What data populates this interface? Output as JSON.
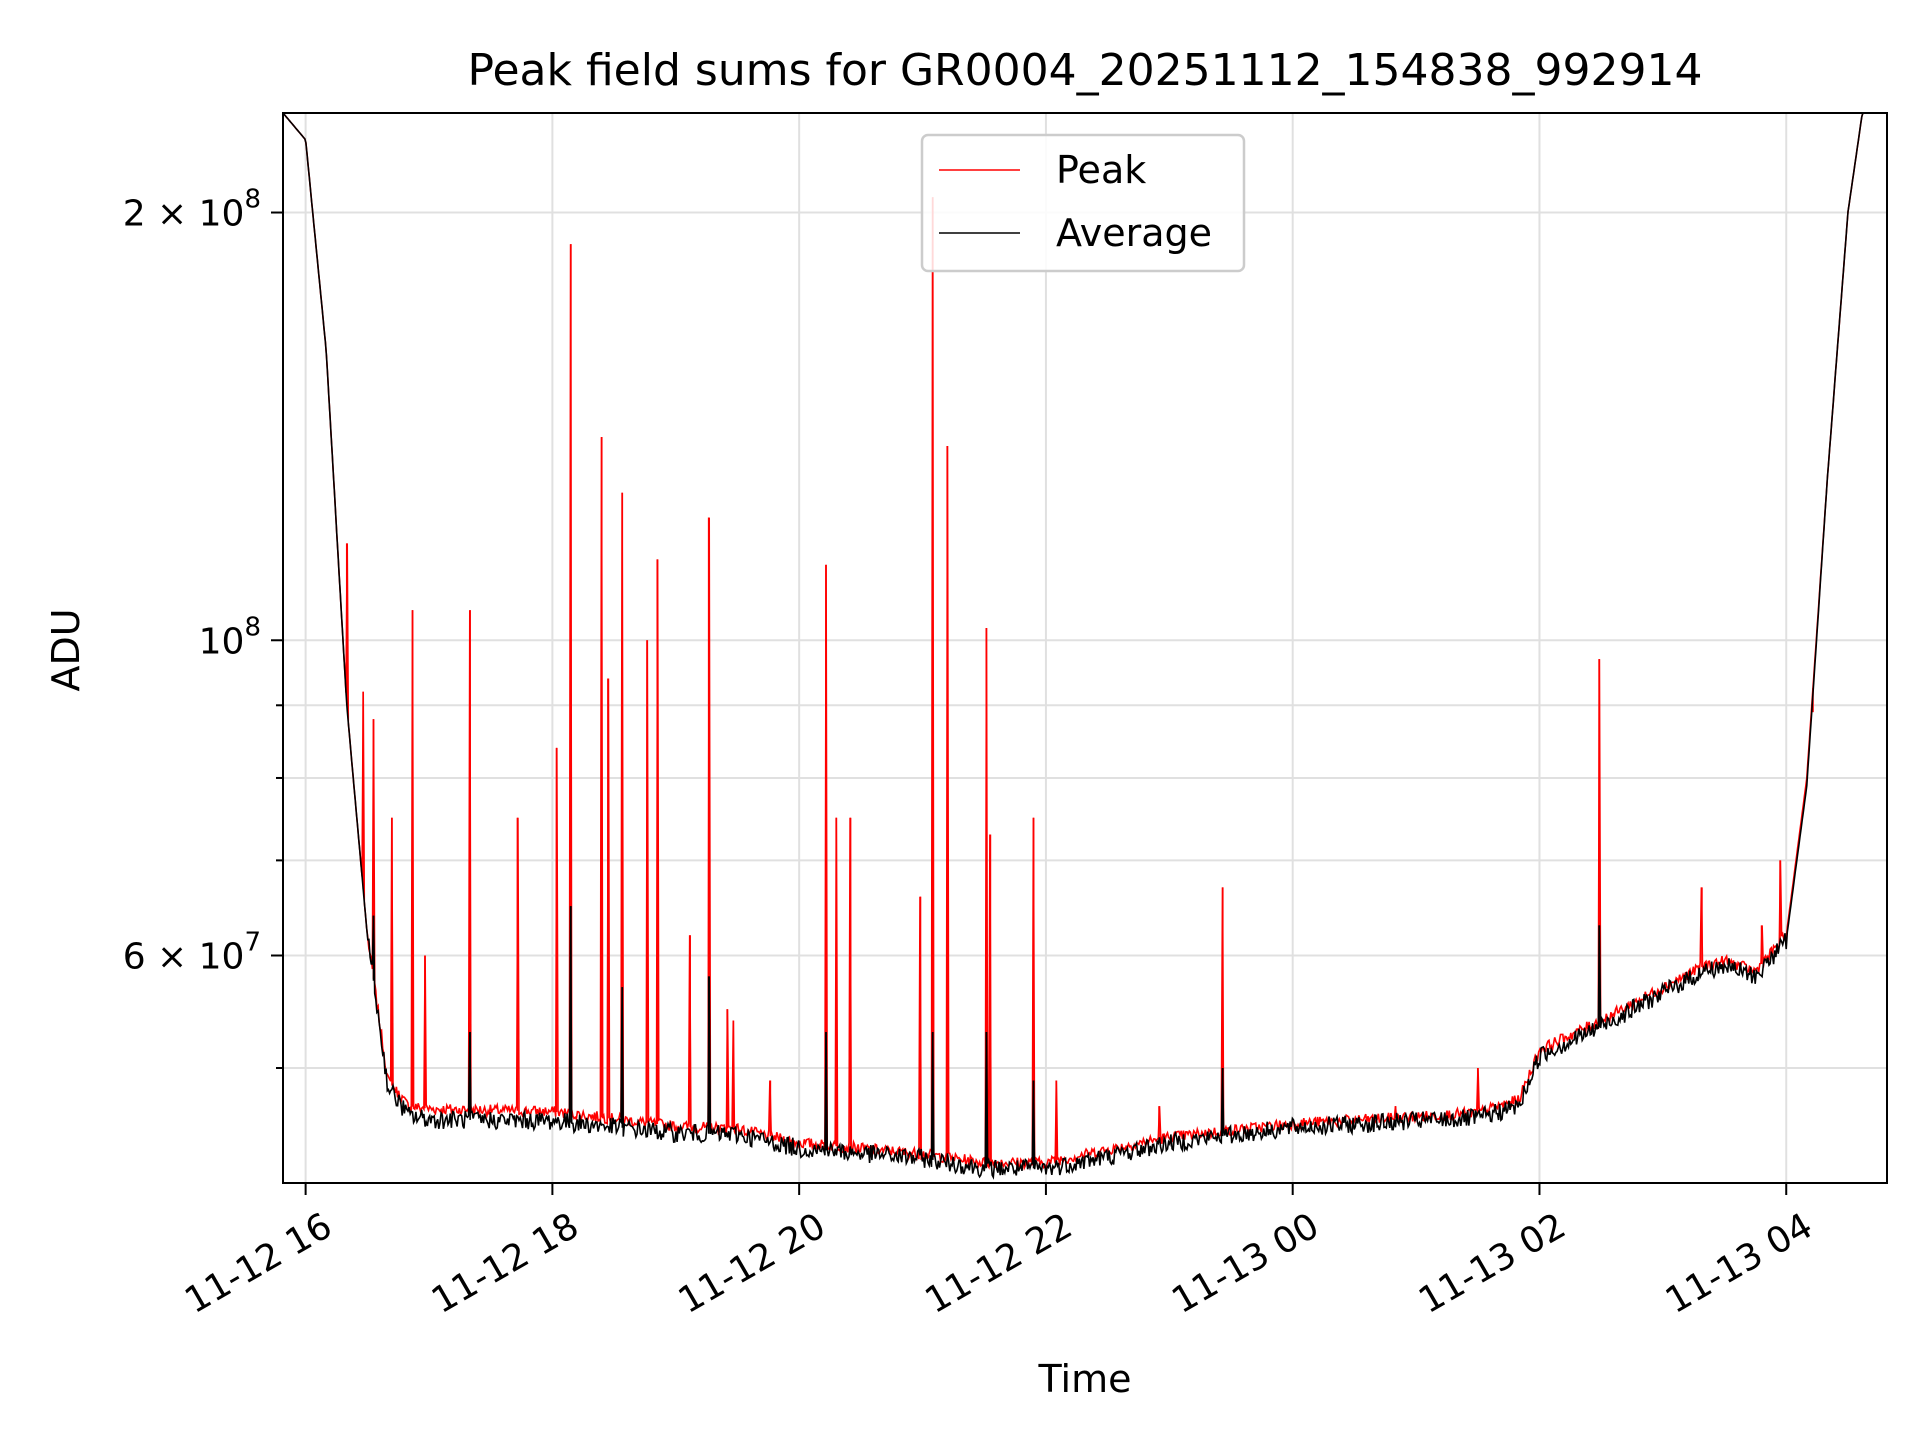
{
  "chart_data": {
    "type": "line",
    "title": "Peak field sums for GR0004_20251112_154838_992914",
    "xlabel": "Time",
    "ylabel": "ADU",
    "yscale": "log",
    "xlim": [
      "2025-11-12 15:49",
      "2025-11-13 04:49"
    ],
    "ylim": [
      41500000,
      235000000
    ],
    "grid": true,
    "legend_position": "top-center",
    "x_ticks": [
      {
        "label": "11-12 16",
        "value": "2025-11-12 16:00"
      },
      {
        "label": "11-12 18",
        "value": "2025-11-12 18:00"
      },
      {
        "label": "11-12 20",
        "value": "2025-11-12 20:00"
      },
      {
        "label": "11-12 22",
        "value": "2025-11-12 22:00"
      },
      {
        "label": "11-13 00",
        "value": "2025-11-13 00:00"
      },
      {
        "label": "11-13 02",
        "value": "2025-11-13 02:00"
      },
      {
        "label": "11-13 04",
        "value": "2025-11-13 04:00"
      }
    ],
    "y_ticks": [
      {
        "value": 200000000,
        "base": "2 × 10",
        "exp": "8"
      },
      {
        "value": 100000000,
        "base": "10",
        "exp": "8"
      },
      {
        "value": 60000000,
        "base": "6 × 10",
        "exp": "7"
      }
    ],
    "y_minor_ticks": [
      50000000,
      70000000,
      80000000,
      90000000
    ],
    "series": [
      {
        "name": "Peak",
        "color": "#ff0000",
        "baseline": [
          [
            "2025-11-12 15:49",
            235000000
          ],
          [
            "2025-11-12 16:00",
            225000000
          ],
          [
            "2025-11-12 16:10",
            160000000
          ],
          [
            "2025-11-12 16:20",
            90000000
          ],
          [
            "2025-11-12 16:30",
            62000000
          ],
          [
            "2025-11-12 16:40",
            49000000
          ],
          [
            "2025-11-12 16:50",
            47000000
          ],
          [
            "2025-11-12 17:00",
            46800000
          ],
          [
            "2025-11-12 18:00",
            46600000
          ],
          [
            "2025-11-12 19:00",
            45500000
          ],
          [
            "2025-11-12 19:30",
            45300000
          ],
          [
            "2025-11-12 20:00",
            44300000
          ],
          [
            "2025-11-12 21:00",
            43500000
          ],
          [
            "2025-11-12 21:30",
            42900000
          ],
          [
            "2025-11-12 22:00",
            42900000
          ],
          [
            "2025-11-12 22:30",
            43800000
          ],
          [
            "2025-11-12 23:00",
            44700000
          ],
          [
            "2025-11-13 00:00",
            45700000
          ],
          [
            "2025-11-13 01:00",
            46200000
          ],
          [
            "2025-11-13 01:30",
            46500000
          ],
          [
            "2025-11-13 01:50",
            47500000
          ],
          [
            "2025-11-13 02:00",
            51500000
          ],
          [
            "2025-11-13 02:30",
            54000000
          ],
          [
            "2025-11-13 03:00",
            57000000
          ],
          [
            "2025-11-13 03:20",
            59000000
          ],
          [
            "2025-11-13 03:30",
            59500000
          ],
          [
            "2025-11-13 03:45",
            58500000
          ],
          [
            "2025-11-13 04:00",
            62000000
          ],
          [
            "2025-11-13 04:10",
            80000000
          ],
          [
            "2025-11-13 04:20",
            130000000
          ],
          [
            "2025-11-13 04:30",
            200000000
          ],
          [
            "2025-11-13 04:37",
            235000000
          ],
          [
            "2025-11-13 04:49",
            235000000
          ]
        ],
        "spikes": [
          [
            "2025-11-12 16:20",
            117000000
          ],
          [
            "2025-11-12 16:28",
            92000000
          ],
          [
            "2025-11-12 16:33",
            88000000
          ],
          [
            "2025-11-12 16:42",
            75000000
          ],
          [
            "2025-11-12 16:52",
            105000000
          ],
          [
            "2025-11-12 16:58",
            60000000
          ],
          [
            "2025-11-12 17:20",
            105000000
          ],
          [
            "2025-11-12 17:43",
            75000000
          ],
          [
            "2025-11-12 18:02",
            84000000
          ],
          [
            "2025-11-12 18:09",
            190000000
          ],
          [
            "2025-11-12 18:24",
            139000000
          ],
          [
            "2025-11-12 18:27",
            94000000
          ],
          [
            "2025-11-12 18:34",
            127000000
          ],
          [
            "2025-11-12 18:46",
            100000000
          ],
          [
            "2025-11-12 18:51",
            114000000
          ],
          [
            "2025-11-12 19:07",
            62000000
          ],
          [
            "2025-11-12 19:16",
            122000000
          ],
          [
            "2025-11-12 19:25",
            55000000
          ],
          [
            "2025-11-12 19:28",
            54000000
          ],
          [
            "2025-11-12 19:46",
            49000000
          ],
          [
            "2025-11-12 20:13",
            113000000
          ],
          [
            "2025-11-12 20:18",
            75000000
          ],
          [
            "2025-11-12 20:25",
            75000000
          ],
          [
            "2025-11-12 20:59",
            66000000
          ],
          [
            "2025-11-12 21:05",
            205000000
          ],
          [
            "2025-11-12 21:12",
            137000000
          ],
          [
            "2025-11-12 21:31",
            102000000
          ],
          [
            "2025-11-12 21:33",
            73000000
          ],
          [
            "2025-11-12 21:54",
            75000000
          ],
          [
            "2025-11-12 22:05",
            49000000
          ],
          [
            "2025-11-12 22:55",
            47000000
          ],
          [
            "2025-11-12 23:26",
            67000000
          ],
          [
            "2025-11-13 00:50",
            47000000
          ],
          [
            "2025-11-13 01:30",
            50000000
          ],
          [
            "2025-11-13 02:29",
            97000000
          ],
          [
            "2025-11-13 03:19",
            67000000
          ],
          [
            "2025-11-13 03:48",
            63000000
          ],
          [
            "2025-11-13 03:57",
            70000000
          ],
          [
            "2025-11-13 04:13",
            89000000
          ]
        ]
      },
      {
        "name": "Average",
        "color": "#000000",
        "baseline": [
          [
            "2025-11-12 15:49",
            235000000
          ],
          [
            "2025-11-12 16:00",
            225000000
          ],
          [
            "2025-11-12 16:10",
            160000000
          ],
          [
            "2025-11-12 16:20",
            90000000
          ],
          [
            "2025-11-12 16:30",
            62000000
          ],
          [
            "2025-11-12 16:40",
            48500000
          ],
          [
            "2025-11-12 16:50",
            46300000
          ],
          [
            "2025-11-12 17:00",
            46000000
          ],
          [
            "2025-11-12 18:00",
            45900000
          ],
          [
            "2025-11-12 19:00",
            45000000
          ],
          [
            "2025-11-12 19:30",
            44900000
          ],
          [
            "2025-11-12 20:00",
            43900000
          ],
          [
            "2025-11-12 21:00",
            43200000
          ],
          [
            "2025-11-12 21:30",
            42500000
          ],
          [
            "2025-11-12 22:00",
            42500000
          ],
          [
            "2025-11-12 22:30",
            43300000
          ],
          [
            "2025-11-12 23:00",
            44300000
          ],
          [
            "2025-11-13 00:00",
            45400000
          ],
          [
            "2025-11-13 01:00",
            45900000
          ],
          [
            "2025-11-13 01:30",
            46100000
          ],
          [
            "2025-11-13 01:50",
            47000000
          ],
          [
            "2025-11-13 02:00",
            51000000
          ],
          [
            "2025-11-13 02:30",
            53500000
          ],
          [
            "2025-11-13 03:00",
            56500000
          ],
          [
            "2025-11-13 03:20",
            58500000
          ],
          [
            "2025-11-13 03:30",
            59000000
          ],
          [
            "2025-11-13 03:45",
            58000000
          ],
          [
            "2025-11-13 04:00",
            61500000
          ],
          [
            "2025-11-13 04:10",
            79000000
          ],
          [
            "2025-11-13 04:20",
            130000000
          ],
          [
            "2025-11-13 04:30",
            200000000
          ],
          [
            "2025-11-13 04:37",
            235000000
          ],
          [
            "2025-11-13 04:49",
            235000000
          ]
        ],
        "spikes": [
          [
            "2025-11-12 16:33",
            64000000
          ],
          [
            "2025-11-12 17:20",
            53000000
          ],
          [
            "2025-11-12 18:09",
            65000000
          ],
          [
            "2025-11-12 18:34",
            57000000
          ],
          [
            "2025-11-12 19:16",
            58000000
          ],
          [
            "2025-11-12 20:13",
            53000000
          ],
          [
            "2025-11-12 21:05",
            53000000
          ],
          [
            "2025-11-12 21:31",
            53000000
          ],
          [
            "2025-11-12 21:54",
            49000000
          ],
          [
            "2025-11-12 23:26",
            50000000
          ],
          [
            "2025-11-13 02:29",
            63000000
          ]
        ]
      }
    ]
  }
}
